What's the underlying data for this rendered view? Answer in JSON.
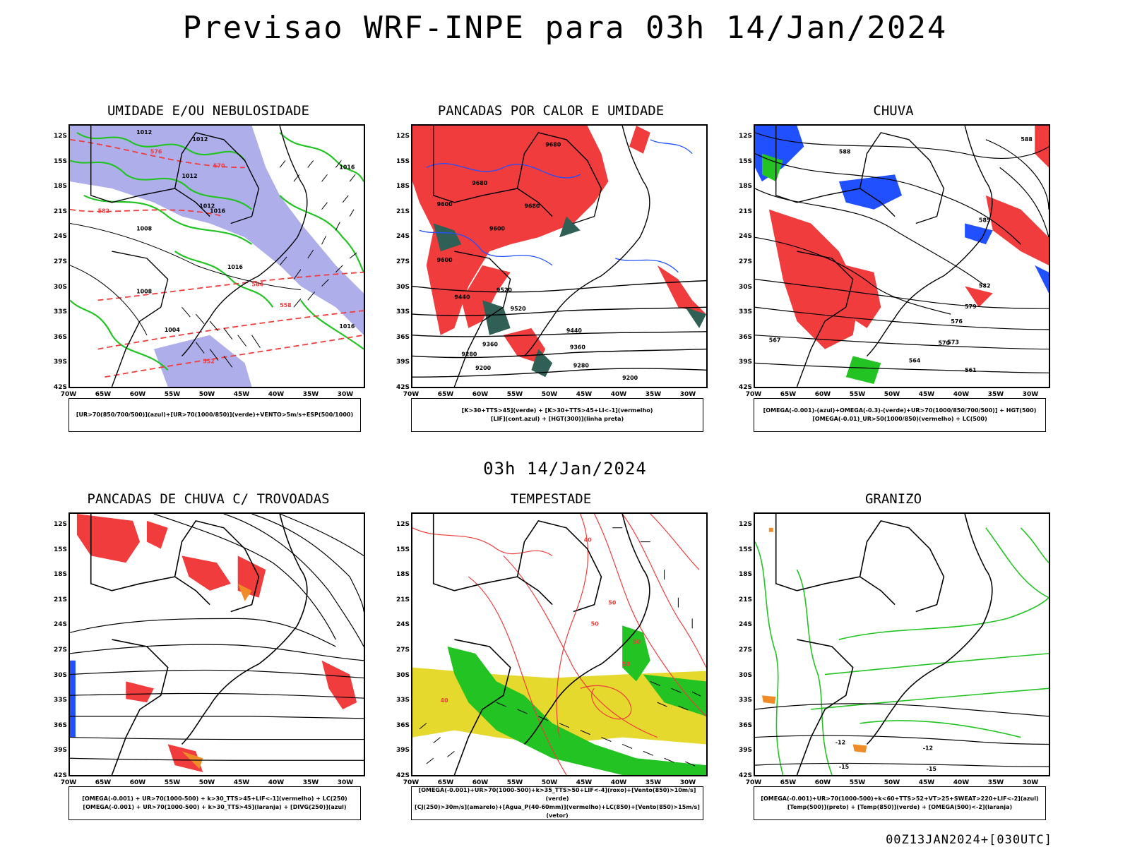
{
  "title": "Previsao WRF-INPE  para 03h 14/Jan/2024",
  "mid_title": "03h 14/Jan/2024",
  "footer": "00Z13JAN2024+[030UTC]",
  "latitudes": [
    "12S",
    "15S",
    "18S",
    "21S",
    "24S",
    "27S",
    "30S",
    "33S",
    "36S",
    "39S",
    "42S"
  ],
  "longitudes": [
    "70W",
    "65W",
    "60W",
    "55W",
    "50W",
    "45W",
    "40W",
    "35W",
    "30W"
  ],
  "colors": {
    "red": "#f03c3c",
    "green": "#22c322",
    "blue": "#2050ff",
    "lavender": "#9a9ae6",
    "yellow": "#e6d92d",
    "darkgreen": "#2f5f55",
    "orange": "#f08c28",
    "black": "#000000"
  },
  "panels": [
    {
      "title": "UMIDADE E/OU NEBULOSIDADE",
      "legend": [
        "[UR>70(850/700/500)](azul)+[UR>70(1000/850)](verde)+VENTO>5m/s+ESP(500/1000)"
      ],
      "labels": [
        "1012",
        "1012",
        "1012",
        "1016",
        "1016",
        "1008",
        "1012",
        "1016",
        "1008",
        "1004",
        "1016",
        "576",
        "582",
        "570",
        "564",
        "558",
        "552"
      ]
    },
    {
      "title": "PANCADAS POR CALOR E UMIDADE",
      "legend": [
        "[K>30+TTS>45](verde) + [K>30+TTS>45+LI<-1](vermelho)",
        "[LIF](cont.azul) + [HGT(300)](linha preta)"
      ],
      "labels": [
        "9680",
        "9680",
        "9600",
        "9680",
        "9600",
        "9600",
        "9520",
        "9520",
        "9440",
        "9440",
        "9360",
        "9360",
        "9280",
        "9280",
        "9200",
        "9200"
      ]
    },
    {
      "title": "CHUVA",
      "legend": [
        "[OMEGA(-0.001)-(azul)+OMEGA(-0.3)-(verde)+UR>70(1000/850/700/500)] + HGT(500)",
        "[OMEGA(-0.01)_UR>50(1000/850)(vermelho) + LC(500)"
      ],
      "labels": [
        "588",
        "588",
        "585",
        "582",
        "579",
        "576",
        "573",
        "570",
        "567",
        "564",
        "561"
      ]
    },
    {
      "title": "PANCADAS DE CHUVA C/ TROVOADAS",
      "legend": [
        "[OMEGA(-0.001) + UR>70(1000-500) + k>30_TTS>45+LIF<-1](vermelho) + LC(250)",
        "[OMEGA(-0.001) + UR>70(1000-500) + k>30_TTS>45](laranja) + [DIVG(250)](azul)"
      ],
      "labels": []
    },
    {
      "title": "TEMPESTADE",
      "legend": [
        "[OMEGA(-0.001)+UR>70(1000-500)+k>35_TTS>50+LIF<-4](roxo)+[Vento(850)>10m/s](verde)",
        "[CJ(250)>30m/s](amarelo)+[Agua_P(40-60mm)](vermelho)+LC(850)+[Vento(850)>15m/s](vetor)"
      ],
      "labels": [
        "40",
        "50",
        "50",
        "50",
        "40",
        "50"
      ]
    },
    {
      "title": "GRANIZO",
      "legend": [
        "[OMEGA(-0.001)+UR>70(1000-500)+k<60+TTS>52+VT>25+SWEAT>220+LIF<-2](azul)",
        "[Temp(500)](preto) + [Temp(850)](verde) + [OMEGA(500)<-2](laranja)"
      ],
      "labels": [
        "-12",
        "-12",
        "-15",
        "-15"
      ]
    }
  ]
}
